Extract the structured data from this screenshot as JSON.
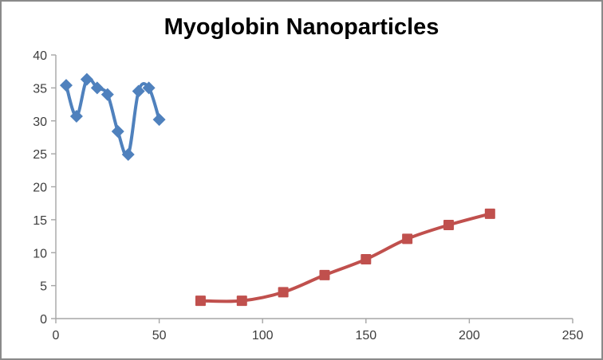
{
  "window": {
    "border_color": "#8a8a8a",
    "background_color": "#ffffff"
  },
  "chart_data": {
    "type": "line",
    "title": "Myoglobin Nanoparticles",
    "xlabel": "",
    "ylabel": "",
    "xlim": [
      0,
      250
    ],
    "ylim": [
      0,
      40
    ],
    "x_ticks": [
      0,
      50,
      100,
      150,
      200,
      250
    ],
    "y_ticks": [
      0,
      5,
      10,
      15,
      20,
      25,
      30,
      35,
      40
    ],
    "grid": false,
    "legend": "none",
    "axis_color": "#a6a6a6",
    "tick_label_color": "#3d3d3d",
    "series": [
      {
        "name": "blue-diamond-series",
        "marker": "diamond",
        "color": "#4F81BD",
        "smooth": true,
        "line_width": 4,
        "points": [
          [
            5,
            35.4
          ],
          [
            10,
            30.7
          ],
          [
            15,
            36.3
          ],
          [
            20,
            35.0
          ],
          [
            25,
            34.0
          ],
          [
            30,
            28.4
          ],
          [
            35,
            24.9
          ],
          [
            40,
            34.5
          ],
          [
            45,
            35.0
          ],
          [
            50,
            30.2
          ]
        ]
      },
      {
        "name": "red-square-series",
        "marker": "square",
        "color": "#C0504D",
        "smooth": true,
        "line_width": 4,
        "points": [
          [
            70,
            2.7
          ],
          [
            90,
            2.7
          ],
          [
            110,
            4.0
          ],
          [
            130,
            6.6
          ],
          [
            150,
            9.0
          ],
          [
            170,
            12.1
          ],
          [
            190,
            14.2
          ],
          [
            210,
            15.9
          ]
        ]
      }
    ]
  }
}
